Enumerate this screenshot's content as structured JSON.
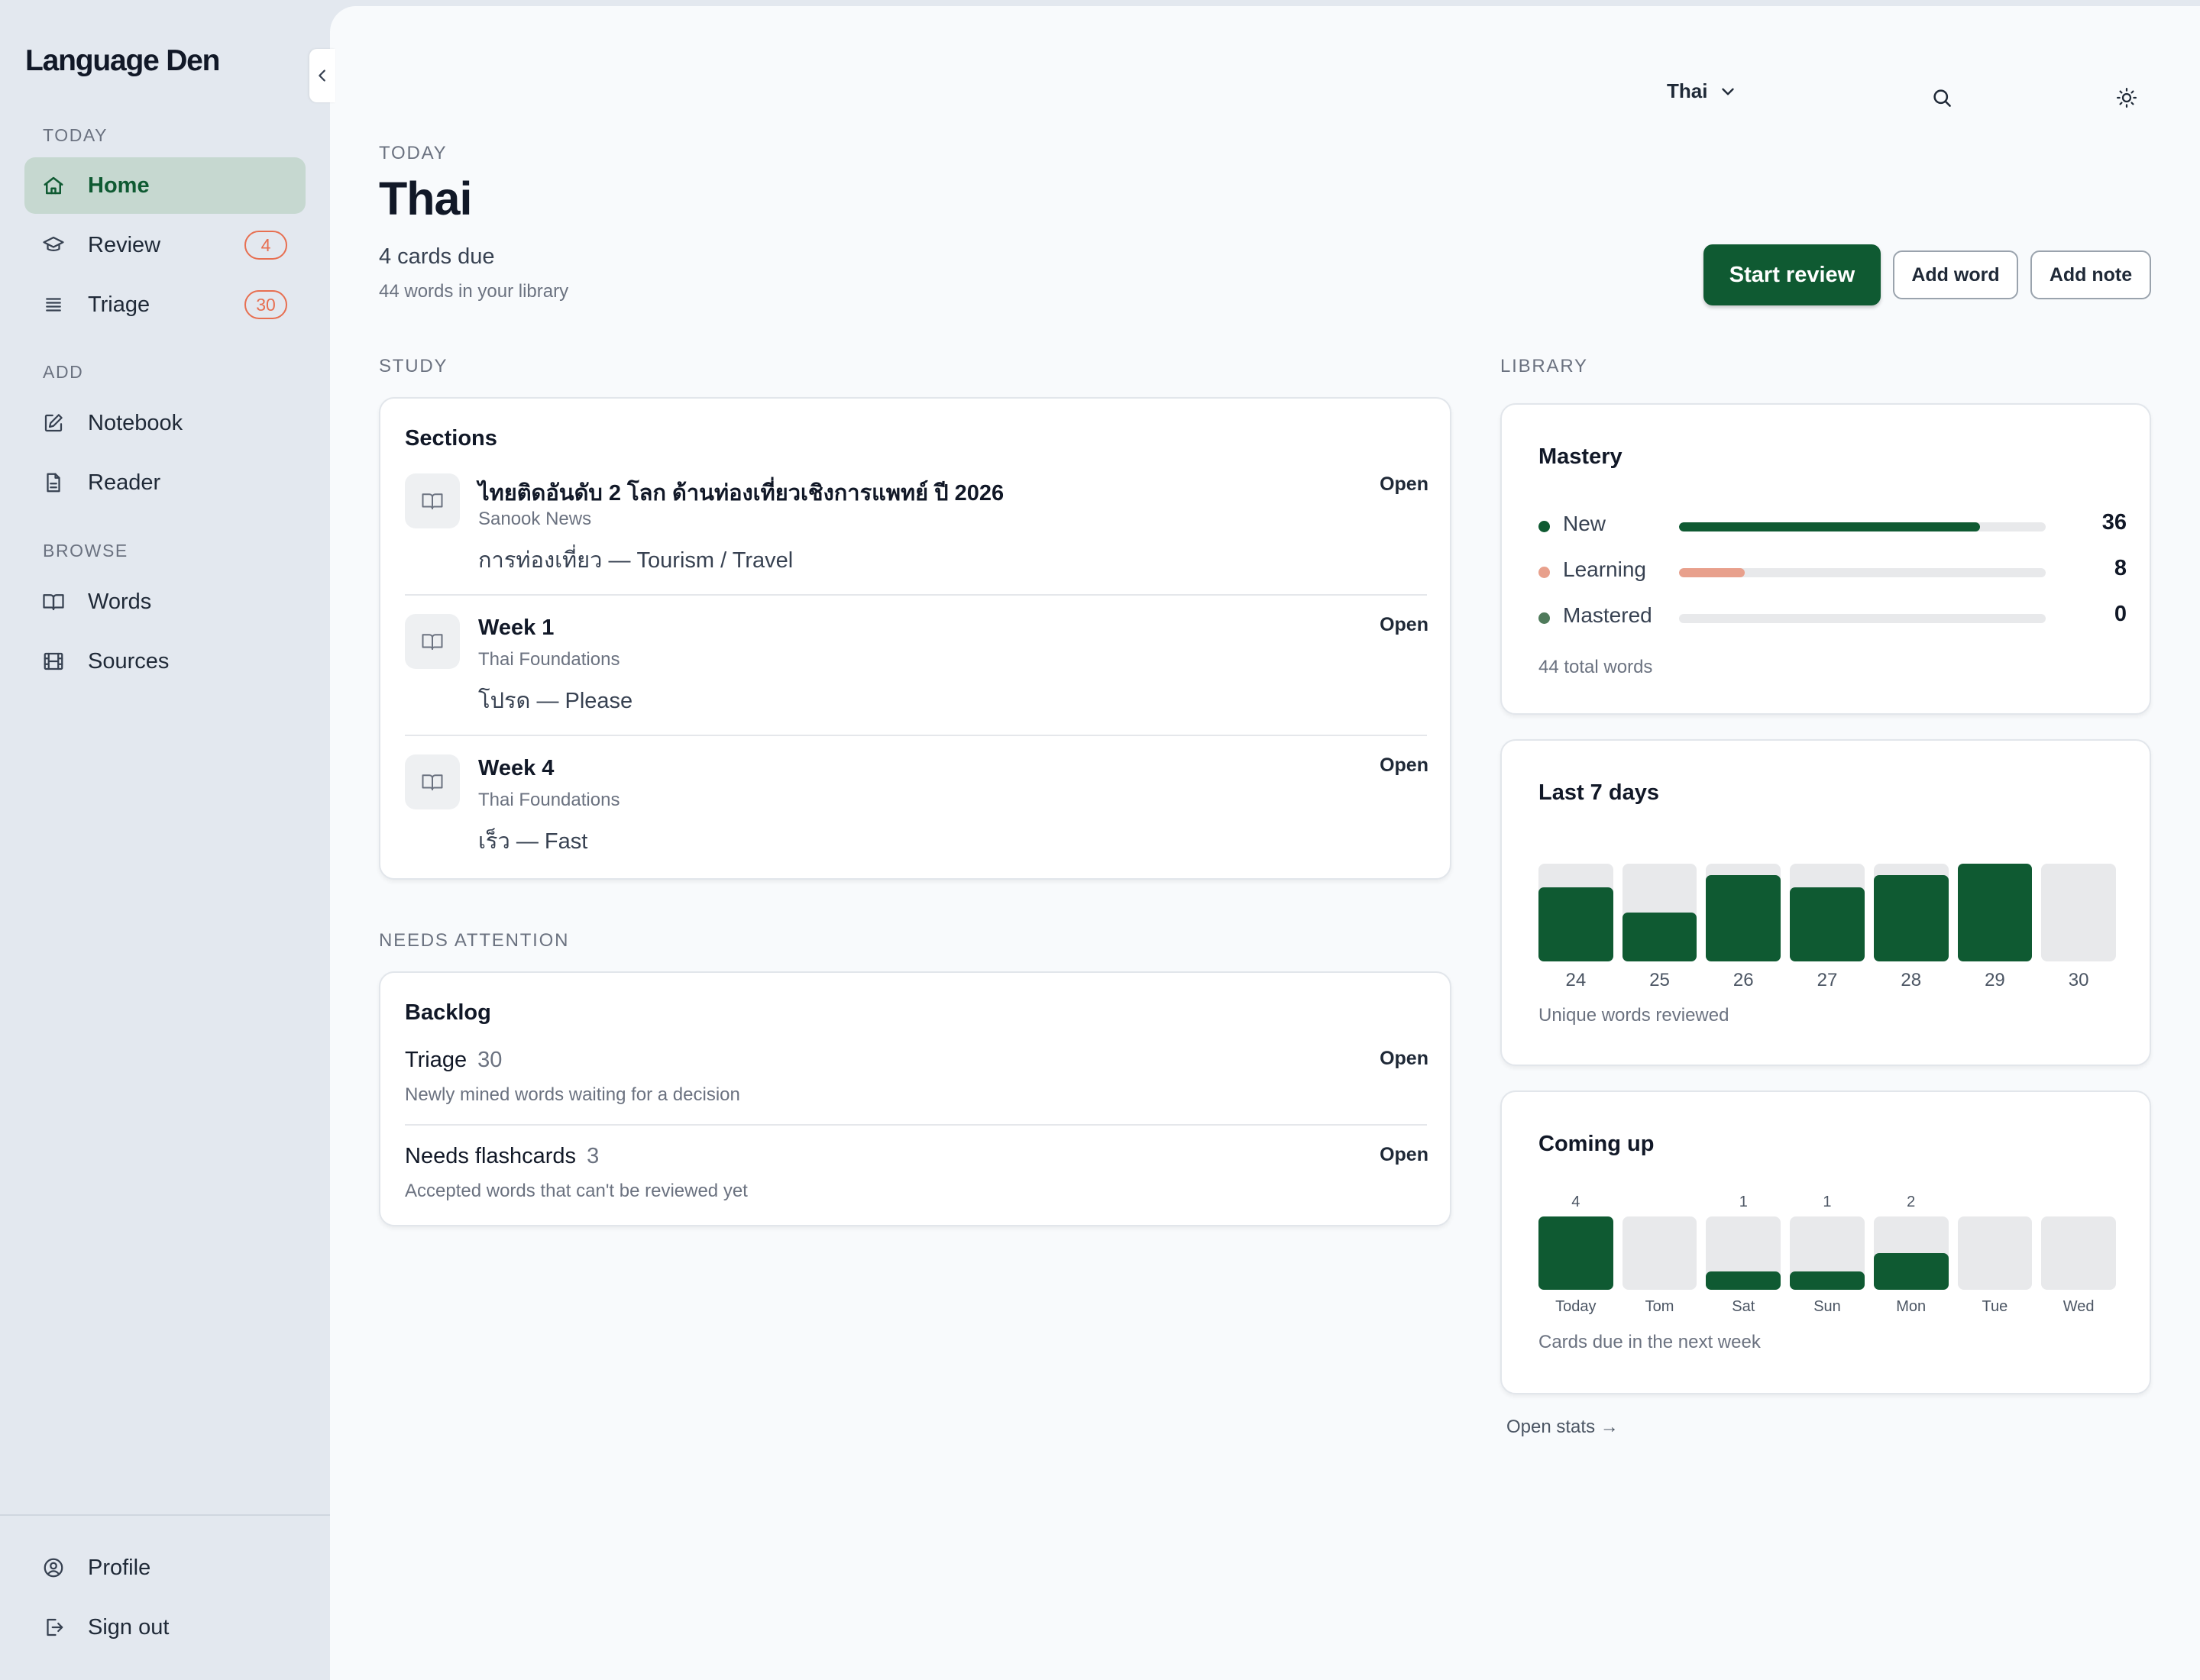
{
  "app": {
    "name": "Language Den"
  },
  "sidebar": {
    "sections": [
      {
        "label": "TODAY"
      },
      {
        "label": "ADD"
      },
      {
        "label": "BROWSE"
      }
    ],
    "items": [
      {
        "label": "Home",
        "icon": "home-icon",
        "active": true
      },
      {
        "label": "Review",
        "icon": "graduation-cap-icon",
        "badge": "4"
      },
      {
        "label": "Triage",
        "icon": "list-icon",
        "badge": "30"
      },
      {
        "label": "Notebook",
        "icon": "pencil-square-icon"
      },
      {
        "label": "Reader",
        "icon": "document-icon"
      },
      {
        "label": "Words",
        "icon": "book-icon"
      },
      {
        "label": "Sources",
        "icon": "film-icon"
      }
    ],
    "footer": [
      {
        "label": "Profile",
        "icon": "user-circle-icon"
      },
      {
        "label": "Sign out",
        "icon": "sign-out-icon"
      }
    ]
  },
  "topbar": {
    "language": "Thai"
  },
  "header": {
    "eyebrow": "TODAY",
    "title": "Thai",
    "due": "4 cards due",
    "library_count": "44 words in your library",
    "start_review": "Start review",
    "add_word": "Add word",
    "add_note": "Add note"
  },
  "study": {
    "heading": "STUDY",
    "card_title": "Sections",
    "items": [
      {
        "title": "ไทยติดอันดับ 2 โลก ด้านท่องเที่ยวเชิงการแพทย์ ปี 2026",
        "source": "Sanook News",
        "word": "การท่องเที่ยว — Tourism / Travel",
        "action": "Open"
      },
      {
        "title": "Week 1",
        "source": "Thai Foundations",
        "word": "โปรด — Please",
        "action": "Open"
      },
      {
        "title": "Week 4",
        "source": "Thai Foundations",
        "word": "เร็ว — Fast",
        "action": "Open"
      }
    ]
  },
  "attention": {
    "heading": "NEEDS ATTENTION",
    "card_title": "Backlog",
    "items": [
      {
        "title": "Triage",
        "count": "30",
        "desc": "Newly mined words waiting for a decision",
        "action": "Open"
      },
      {
        "title": "Needs flashcards",
        "count": "3",
        "desc": "Accepted words that can't be reviewed yet",
        "action": "Open"
      }
    ]
  },
  "library": {
    "heading": "LIBRARY",
    "mastery": {
      "title": "Mastery",
      "rows": [
        {
          "label": "New",
          "value": "36",
          "fraction": 0.82,
          "color": "#0f5a32"
        },
        {
          "label": "Learning",
          "value": "8",
          "fraction": 0.18,
          "color": "#e8a08c"
        },
        {
          "label": "Mastered",
          "value": "0",
          "fraction": 0,
          "color": "#4f7a5b"
        }
      ],
      "total": "44 total words"
    },
    "open_stats": "Open stats →"
  },
  "chart_data": [
    {
      "type": "bar",
      "title": "Last 7 days",
      "categories": [
        "24",
        "25",
        "26",
        "27",
        "28",
        "29",
        "30"
      ],
      "values": [
        0.76,
        0.5,
        0.88,
        0.76,
        0.88,
        1.0,
        0
      ],
      "ylim": [
        0,
        1
      ],
      "caption": "Unique words reviewed"
    },
    {
      "type": "bar",
      "title": "Coming up",
      "categories": [
        "Today",
        "Tom",
        "Sat",
        "Sun",
        "Mon",
        "Tue",
        "Wed"
      ],
      "values": [
        4,
        0,
        1,
        1,
        2,
        0,
        0
      ],
      "data_labels": [
        "4",
        "",
        "1",
        "1",
        "2",
        "",
        ""
      ],
      "ylim": [
        0,
        4
      ],
      "caption": "Cards due in the next week"
    }
  ]
}
